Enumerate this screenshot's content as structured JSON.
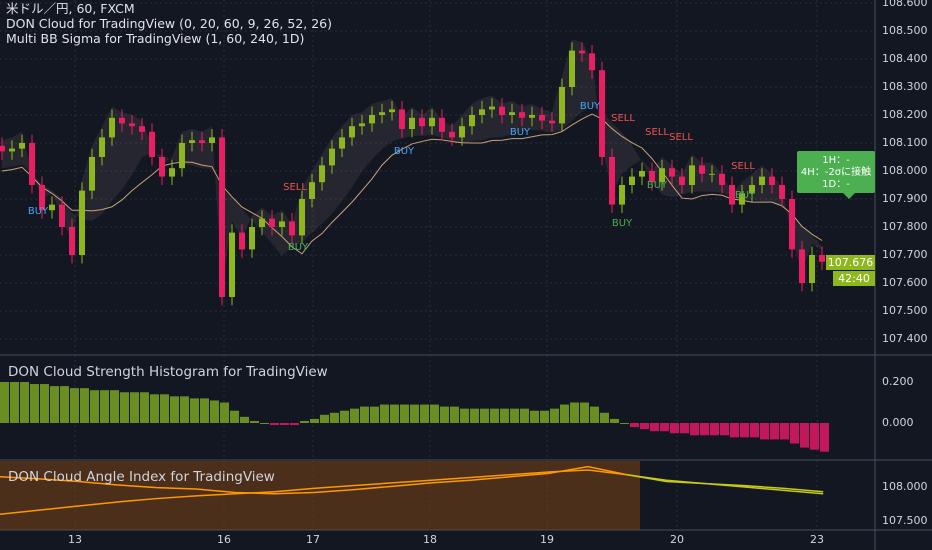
{
  "legend": {
    "symbol": "米ドル／円, 60, FXCM",
    "indicator1": "DON Cloud for TradingView (0, 20, 60, 9, 26, 52, 26)",
    "indicator2": "Multi BB Sigma for TradingView (1, 60, 240, 1D)"
  },
  "panels": {
    "histogram_title": "DON Cloud Strength Histogram for TradingView",
    "angle_title": "DON Cloud Angle Index for TradingView"
  },
  "price_axis": [
    "108.600",
    "108.500",
    "108.400",
    "108.300",
    "108.200",
    "108.100",
    "108.000",
    "107.900",
    "107.800",
    "107.700",
    "107.600",
    "107.500",
    "107.400"
  ],
  "histogram_axis": [
    "0.200",
    "0.000"
  ],
  "angle_axis": [
    "108.000",
    "107.500"
  ],
  "time_axis": [
    "13",
    "16",
    "17",
    "18",
    "19",
    "20",
    "23"
  ],
  "current_price": "107.676",
  "countdown": "42:40",
  "tooltip": {
    "line1": "1H：-",
    "line2": "4H：-2σに接触",
    "line3": "1D：-"
  },
  "signals": [
    {
      "label": "BUY",
      "type": "buy-blue"
    },
    {
      "label": "BUY",
      "type": "buy-blue"
    },
    {
      "label": "BUY",
      "type": "buy-blue"
    },
    {
      "label": "BUY",
      "type": "buy-blue"
    },
    {
      "label": "BUY",
      "type": "buy-green"
    },
    {
      "label": "BUY",
      "type": "buy-green"
    },
    {
      "label": "BUY",
      "type": "buy-green"
    },
    {
      "label": "BUY",
      "type": "buy-green"
    },
    {
      "label": "SELL",
      "type": "sell"
    },
    {
      "label": "SELL",
      "type": "sell"
    },
    {
      "label": "SELL",
      "type": "sell"
    },
    {
      "label": "SELL",
      "type": "sell"
    },
    {
      "label": "SELL",
      "type": "sell"
    }
  ],
  "colors": {
    "background": "#131722",
    "up": "#8db71c",
    "down": "#e91e63",
    "buy_blue": "#42a5f5",
    "buy_green": "#4caf50",
    "sell": "#ef5350",
    "angle_line": "#ff9800",
    "angle_line2": "#c6c916",
    "angle_bg": "#7a4416"
  },
  "chart_data": [
    {
      "type": "candlestick",
      "title": "米ドル／円, 60, FXCM",
      "ylim": [
        107.4,
        108.6
      ],
      "closes": [
        108.07,
        108.08,
        108.1,
        107.95,
        107.86,
        107.88,
        107.8,
        107.7,
        107.93,
        108.05,
        108.12,
        108.19,
        108.17,
        108.16,
        108.14,
        108.05,
        107.98,
        108.01,
        108.1,
        108.11,
        108.1,
        108.12,
        107.55,
        107.78,
        107.72,
        107.8,
        107.83,
        107.8,
        107.82,
        107.77,
        107.9,
        107.96,
        108.02,
        108.08,
        108.12,
        108.16,
        108.17,
        108.2,
        108.21,
        108.22,
        108.15,
        108.19,
        108.16,
        108.19,
        108.14,
        108.12,
        108.16,
        108.2,
        108.22,
        108.23,
        108.2,
        108.21,
        108.19,
        108.2,
        108.18,
        108.17,
        108.3,
        108.43,
        108.42,
        108.36,
        108.05,
        107.88,
        107.95,
        107.98,
        108.0,
        107.96,
        108.01,
        107.98,
        107.95,
        108.02,
        107.99,
        107.99,
        107.95,
        107.88,
        107.92,
        107.95,
        107.98,
        107.95,
        107.9,
        107.72,
        107.6,
        107.7,
        107.676
      ]
    },
    {
      "type": "bar",
      "title": "DON Cloud Strength Histogram for TradingView",
      "ylim": [
        -0.15,
        0.28
      ],
      "values": [
        0.2,
        0.2,
        0.2,
        0.19,
        0.19,
        0.18,
        0.18,
        0.17,
        0.17,
        0.16,
        0.16,
        0.16,
        0.15,
        0.15,
        0.15,
        0.14,
        0.14,
        0.13,
        0.13,
        0.12,
        0.12,
        0.11,
        0.1,
        0.06,
        0.03,
        0.01,
        0.0,
        -0.01,
        -0.01,
        -0.01,
        0.01,
        0.02,
        0.04,
        0.05,
        0.06,
        0.07,
        0.08,
        0.08,
        0.09,
        0.09,
        0.09,
        0.09,
        0.09,
        0.09,
        0.08,
        0.08,
        0.07,
        0.07,
        0.07,
        0.07,
        0.07,
        0.07,
        0.07,
        0.06,
        0.06,
        0.07,
        0.09,
        0.1,
        0.1,
        0.08,
        0.05,
        0.02,
        0.0,
        -0.02,
        -0.03,
        -0.04,
        -0.04,
        -0.05,
        -0.05,
        -0.06,
        -0.06,
        -0.06,
        -0.06,
        -0.07,
        -0.07,
        -0.07,
        -0.08,
        -0.08,
        -0.08,
        -0.1,
        -0.12,
        -0.13,
        -0.14
      ]
    },
    {
      "type": "line",
      "title": "DON Cloud Angle Index for TradingView",
      "ylim": [
        107.4,
        108.4
      ],
      "series": [
        {
          "values": [
            107.6,
            107.66,
            107.72,
            107.78,
            107.83,
            107.87,
            107.9,
            107.93,
            107.98,
            108.02,
            108.06,
            108.1,
            108.14,
            108.18,
            108.22,
            108.25,
            108.18,
            108.1,
            108.05,
            108.0,
            107.95,
            107.9
          ]
        },
        {
          "values": [
            108.15,
            108.12,
            108.08,
            108.03,
            107.99,
            107.97,
            107.92,
            107.9,
            107.92,
            107.96,
            108.01,
            108.06,
            108.1,
            108.15,
            108.2,
            108.3,
            108.18,
            108.08,
            108.05,
            108.02,
            107.98,
            107.93
          ]
        }
      ]
    }
  ]
}
